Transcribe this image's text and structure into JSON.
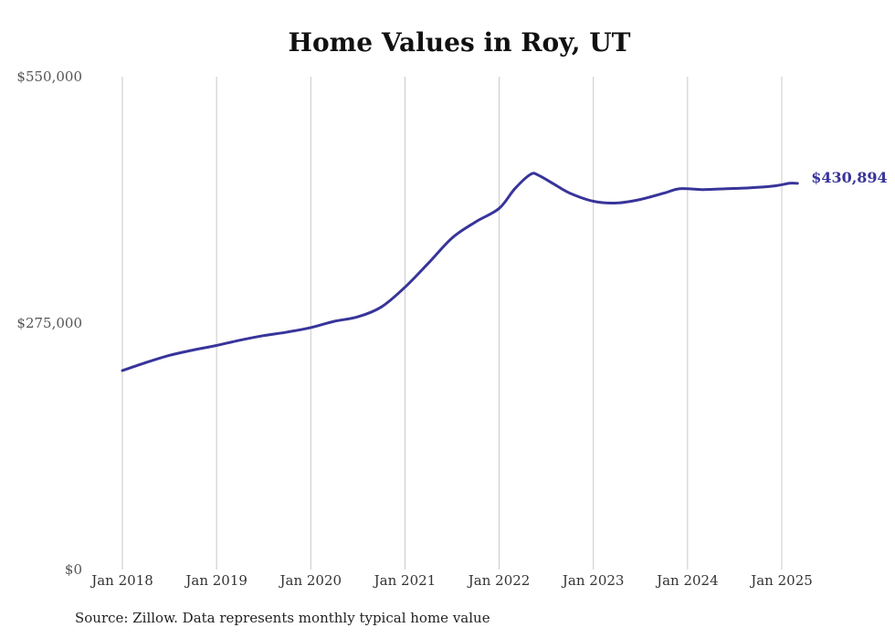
{
  "chart_data": {
    "type": "line",
    "title": "Home Values in Roy, UT",
    "xlabel": "",
    "ylabel": "",
    "ylim": [
      0,
      550000
    ],
    "y_ticks": [
      {
        "value": 0,
        "label": "$0"
      },
      {
        "value": 275000,
        "label": "$275,000"
      },
      {
        "value": 550000,
        "label": "$550,000"
      }
    ],
    "x_ticks": [
      "Jan 2018",
      "Jan 2019",
      "Jan 2020",
      "Jan 2021",
      "Jan 2022",
      "Jan 2023",
      "Jan 2024",
      "Jan 2025"
    ],
    "x_ticks_dates": [
      "2018-01",
      "2019-01",
      "2020-01",
      "2021-01",
      "2022-01",
      "2023-01",
      "2024-01",
      "2025-01"
    ],
    "grid": "vertical",
    "color": "#38349a",
    "end_label": "$430,894",
    "series": [
      {
        "x": [
          "2018-01",
          "2018-04",
          "2018-07",
          "2018-10",
          "2019-01",
          "2019-04",
          "2019-07",
          "2019-10",
          "2020-01",
          "2020-04",
          "2020-07",
          "2020-10",
          "2021-01",
          "2021-04",
          "2021-07",
          "2021-10",
          "2022-01",
          "2022-03",
          "2022-05",
          "2022-06",
          "2022-08",
          "2022-10",
          "2023-01",
          "2023-04",
          "2023-07",
          "2023-10",
          "2023-12",
          "2024-03",
          "2024-06",
          "2024-09",
          "2024-12",
          "2025-02",
          "2025-03"
        ],
        "y": [
          222000,
          231000,
          239000,
          245000,
          250000,
          256000,
          261000,
          265000,
          270000,
          277000,
          282000,
          293000,
          315000,
          342000,
          370000,
          388000,
          403000,
          425000,
          441000,
          440000,
          430000,
          420000,
          411000,
          409000,
          413000,
          420000,
          425000,
          424000,
          425000,
          426000,
          428000,
          431000,
          430894
        ]
      }
    ]
  },
  "source_note": "Source: Zillow. Data represents monthly typical home value"
}
